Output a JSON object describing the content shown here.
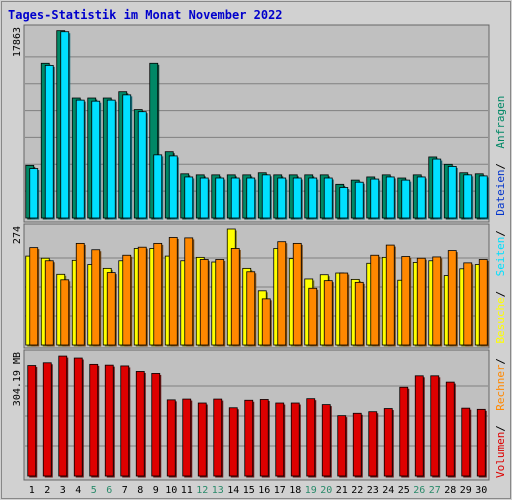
{
  "chart_data": {
    "type": "bar",
    "title": "Tages-Statistik im Monat November 2022",
    "categories": [
      "1",
      "2",
      "3",
      "4",
      "5",
      "6",
      "7",
      "8",
      "9",
      "10",
      "11",
      "12",
      "13",
      "14",
      "15",
      "16",
      "17",
      "18",
      "19",
      "20",
      "21",
      "22",
      "23",
      "24",
      "25",
      "26",
      "27",
      "28",
      "29",
      "30"
    ],
    "weekend_days": [
      "5",
      "6",
      "12",
      "13",
      "19",
      "20",
      "26",
      "27"
    ],
    "legend": [
      {
        "key": "volumen",
        "label": "Volumen",
        "color": "#dd0000"
      },
      {
        "key": "rechner",
        "label": "Rechner",
        "color": "#ff8800"
      },
      {
        "key": "besuche",
        "label": "Besuche",
        "color": "#ffff00"
      },
      {
        "key": "seiten",
        "label": "Seiten",
        "color": "#00e0ff"
      },
      {
        "key": "dateien",
        "label": "Dateien",
        "color": "#0033cc"
      },
      {
        "key": "anfragen",
        "label": "Anfragen",
        "color": "#008866"
      }
    ],
    "panels": [
      {
        "id": "anfragen-panel",
        "ymax_label": "17863",
        "ymax": 17863,
        "series": [
          {
            "name": "Anfragen",
            "color": "#008866",
            "values": [
              5000,
              14700,
              17800,
              11400,
              11400,
              11400,
              12000,
              10300,
              14700,
              6300,
              4200,
              4100,
              4100,
              4100,
              4100,
              4300,
              4100,
              4100,
              4100,
              4100,
              3200,
              3600,
              3900,
              4100,
              3800,
              4100,
              5800,
              5100,
              4300,
              4200
            ]
          },
          {
            "name": "Seiten",
            "color": "#00e0ff",
            "values": [
              4700,
              14500,
              17700,
              11200,
              11100,
              11200,
              11700,
              10100,
              6000,
              5900,
              3900,
              3800,
              3800,
              3800,
              3800,
              4100,
              3800,
              3800,
              3800,
              3800,
              2900,
              3400,
              3700,
              3900,
              3600,
              3900,
              5600,
              4900,
              4100,
              4000
            ]
          }
        ]
      },
      {
        "id": "besuche-panel",
        "ymax_label": "274",
        "ymax": 274,
        "series": [
          {
            "name": "Besuche",
            "color": "#ffff00",
            "values": [
              210,
              205,
              167,
              200,
              190,
              181,
              199,
              228,
              228,
              210,
              199,
              207,
              196,
              274,
              181,
              128,
              228,
              204,
              156,
              166,
              170,
              155,
              193,
              207,
              153,
              195,
              199,
              164,
              180,
              190
            ]
          },
          {
            "name": "Rechner",
            "color": "#ff8800",
            "values": [
              230,
              199,
              154,
              240,
              225,
              171,
              212,
              231,
              240,
              254,
              253,
              202,
              202,
              228,
              173,
              109,
              244,
              240,
              134,
              152,
              170,
              148,
              212,
              236,
              209,
              205,
              208,
              223,
              194,
              202
            ]
          }
        ]
      },
      {
        "id": "volumen-panel",
        "ymax_label": "304.19 MB",
        "ymax": 304.19,
        "series": [
          {
            "name": "Volumen",
            "color": "#dd0000",
            "values": [
              280,
              287,
              304,
              299,
              283,
              281,
              279,
              265,
              260,
              193,
              195,
              185,
              195,
              173,
              192,
              194,
              185,
              185,
              196,
              181,
              153,
              159,
              163,
              171,
              225,
              254,
              254,
              238,
              172,
              169
            ]
          }
        ]
      }
    ]
  }
}
